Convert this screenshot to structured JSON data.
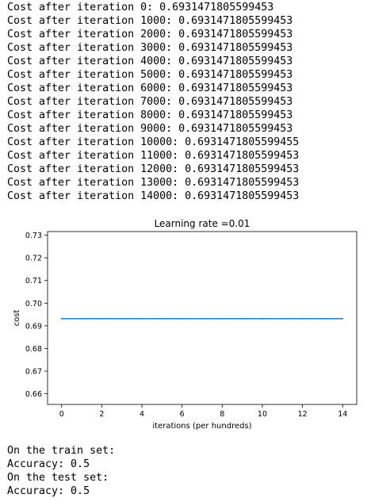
{
  "log": {
    "lines": [
      "Cost after iteration 0: 0.6931471805599453",
      "Cost after iteration 1000: 0.6931471805599453",
      "Cost after iteration 2000: 0.6931471805599453",
      "Cost after iteration 3000: 0.6931471805599453",
      "Cost after iteration 4000: 0.6931471805599453",
      "Cost after iteration 5000: 0.6931471805599453",
      "Cost after iteration 6000: 0.6931471805599453",
      "Cost after iteration 7000: 0.6931471805599453",
      "Cost after iteration 8000: 0.6931471805599453",
      "Cost after iteration 9000: 0.6931471805599453",
      "Cost after iteration 10000: 0.6931471805599455",
      "Cost after iteration 11000: 0.6931471805599453",
      "Cost after iteration 12000: 0.6931471805599453",
      "Cost after iteration 13000: 0.6931471805599453",
      "Cost after iteration 14000: 0.6931471805599453"
    ]
  },
  "results": {
    "lines": [
      "On the train set:",
      "Accuracy: 0.5",
      "On the test set:",
      "Accuracy: 0.5"
    ]
  },
  "chart_data": {
    "type": "line",
    "title": "Learning rate =0.01",
    "xlabel": "iterations (per hundreds)",
    "ylabel": "cost",
    "x": [
      0,
      1,
      2,
      3,
      4,
      5,
      6,
      7,
      8,
      9,
      10,
      11,
      12,
      13,
      14
    ],
    "series": [
      {
        "values": [
          0.6931471805599453,
          0.6931471805599453,
          0.6931471805599453,
          0.6931471805599453,
          0.6931471805599453,
          0.6931471805599453,
          0.6931471805599453,
          0.6931471805599453,
          0.6931471805599453,
          0.6931471805599453,
          0.6931471805599455,
          0.6931471805599453,
          0.6931471805599453,
          0.6931471805599453,
          0.6931471805599453
        ],
        "color": "#1f77b4"
      }
    ],
    "xlim": [
      -0.7,
      14.7
    ],
    "ylim": [
      0.6553,
      0.7316
    ],
    "xticks": [
      0,
      2,
      4,
      6,
      8,
      10,
      12,
      14
    ],
    "xtick_labels": [
      "0",
      "2",
      "4",
      "6",
      "8",
      "10",
      "12",
      "14"
    ],
    "yticks": [
      0.66,
      0.67,
      0.68,
      0.69,
      0.7,
      0.71,
      0.72,
      0.73
    ],
    "ytick_labels": [
      "0.66",
      "0.67",
      "0.68",
      "0.69",
      "0.70",
      "0.71",
      "0.72",
      "0.73"
    ],
    "grid": false,
    "legend": "none"
  }
}
